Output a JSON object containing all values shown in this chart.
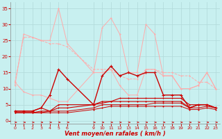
{
  "x": [
    0,
    1,
    2,
    3,
    4,
    5,
    6,
    9,
    10,
    11,
    12,
    13,
    14,
    15,
    16,
    17,
    18,
    19,
    20,
    21,
    22,
    23
  ],
  "x_positions": [
    0,
    1,
    2,
    3,
    4,
    5,
    6,
    9,
    10,
    11,
    12,
    13,
    14,
    15,
    16,
    17,
    18,
    19,
    20,
    21,
    22,
    23
  ],
  "background_color": "#c8f0f0",
  "grid_color": "#b0d8d8",
  "xlabel": "Vent moyen/en rafales ( km/h )",
  "ylabel_ticks": [
    0,
    5,
    10,
    15,
    20,
    25,
    30,
    35
  ],
  "xlim": [
    -0.5,
    23.5
  ],
  "ylim": [
    -1,
    37
  ],
  "series": [
    {
      "color": "#ffaaaa",
      "linewidth": 0.7,
      "markersize": 2.0,
      "marker": "+",
      "linestyle": "-",
      "values": [
        11,
        27,
        26,
        25,
        25,
        35,
        24,
        15,
        29,
        32,
        27,
        15,
        15,
        30,
        27,
        14,
        14,
        10,
        10,
        11,
        15,
        10
      ]
    },
    {
      "color": "#ffaaaa",
      "linewidth": 0.7,
      "markersize": 2.0,
      "marker": "+",
      "linestyle": "-",
      "values": [
        12,
        9,
        8,
        8,
        7,
        6,
        6,
        15,
        15,
        16,
        11,
        8,
        8,
        16,
        16,
        14,
        14,
        10,
        10,
        11,
        15,
        10
      ]
    },
    {
      "color": "#ffaaaa",
      "linewidth": 0.7,
      "markersize": 2.0,
      "marker": "+",
      "linestyle": "--",
      "values": [
        12,
        26,
        26,
        25,
        24,
        24,
        23,
        16,
        16,
        16,
        14,
        13,
        13,
        16,
        16,
        15,
        15,
        14,
        14,
        12,
        12,
        10
      ]
    },
    {
      "color": "#cc0000",
      "linewidth": 1.0,
      "markersize": 2.5,
      "marker": "+",
      "linestyle": "-",
      "values": [
        3,
        3,
        3,
        4,
        8,
        16,
        13,
        5,
        14,
        17,
        14,
        15,
        14,
        15,
        15,
        8,
        8,
        8,
        4,
        5,
        5,
        4
      ]
    },
    {
      "color": "#cc0000",
      "linewidth": 0.8,
      "markersize": 2.0,
      "marker": "+",
      "linestyle": "-",
      "values": [
        3,
        3,
        3,
        4,
        3,
        5,
        5,
        5,
        6,
        6,
        7,
        7,
        7,
        7,
        7,
        7,
        7,
        7,
        5,
        5,
        5,
        4
      ]
    },
    {
      "color": "#cc0000",
      "linewidth": 0.8,
      "markersize": 2.0,
      "marker": "+",
      "linestyle": "-",
      "values": [
        2.5,
        2.5,
        2.5,
        3,
        3,
        4,
        4,
        5,
        5.5,
        6,
        6,
        6,
        6,
        6,
        6,
        6,
        6,
        6,
        4,
        5,
        5,
        4
      ]
    },
    {
      "color": "#cc0000",
      "linewidth": 0.7,
      "markersize": 1.8,
      "marker": "+",
      "linestyle": "-",
      "values": [
        2.5,
        2.5,
        2.5,
        2.5,
        3,
        3,
        3,
        4,
        5,
        5,
        5,
        5,
        5,
        5,
        5.5,
        5.5,
        5.5,
        5.5,
        4,
        4,
        4.5,
        4
      ]
    },
    {
      "color": "#cc0000",
      "linewidth": 0.7,
      "markersize": 1.8,
      "marker": "+",
      "linestyle": "-",
      "values": [
        2.5,
        2.5,
        2.5,
        2.5,
        2.5,
        2.5,
        2.5,
        3.5,
        4,
        4.5,
        4.5,
        4.5,
        4.5,
        4.5,
        4.5,
        4.5,
        4.5,
        4.5,
        3.5,
        3.5,
        4,
        3.5
      ]
    }
  ],
  "tick_color": "#cc0000",
  "axis_label_color": "#cc0000",
  "spine_color": "#888888"
}
